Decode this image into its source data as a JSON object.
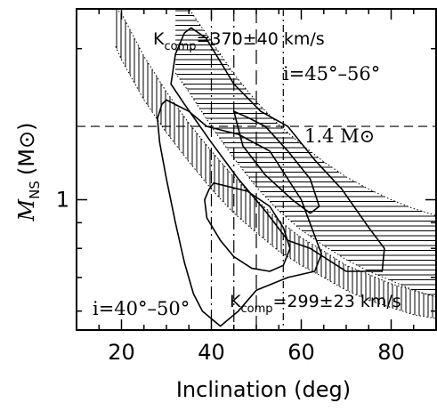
{
  "chart_data": {
    "type": "line",
    "title": "",
    "xlabel": "Inclination (deg)",
    "ylabel_main": "M",
    "ylabel_sub": "NS",
    "ylabel_unit": "(M⊙)",
    "xlim": [
      10,
      90
    ],
    "ylim": [
      0.55,
      2.4
    ],
    "y_scale": "log",
    "xticks": [
      20,
      40,
      60,
      80
    ],
    "xtick_labels": [
      "20",
      "40",
      "60",
      "80"
    ],
    "yticks": [
      1
    ],
    "ytick_labels": [
      "1"
    ],
    "grid": false,
    "reference_lines": [
      {
        "orientation": "horizontal",
        "value": 1.4,
        "style": "dashed",
        "label": "1.4 M⊙"
      },
      {
        "orientation": "vertical",
        "value": 40,
        "style": "long-dash-dot"
      },
      {
        "orientation": "vertical",
        "value": 45,
        "style": "long-dash-dot"
      },
      {
        "orientation": "vertical",
        "value": 50,
        "style": "long-dash"
      },
      {
        "orientation": "vertical",
        "value": 56,
        "style": "dash-dot"
      }
    ],
    "bands": [
      {
        "label": "K_comp=370±40 km/s",
        "hatch": "horizontal",
        "x": [
          32,
          35,
          40,
          45,
          50,
          55,
          60,
          65,
          70,
          75,
          80,
          85,
          90
        ],
        "y_upper": [
          2.4,
          2.4,
          2.07,
          1.78,
          1.57,
          1.41,
          1.29,
          1.19,
          1.11,
          1.05,
          1.0,
          0.96,
          0.93
        ],
        "y_lower": [
          1.79,
          1.64,
          1.4,
          1.21,
          1.06,
          0.95,
          0.87,
          0.81,
          0.76,
          0.72,
          0.69,
          0.66,
          0.64
        ]
      },
      {
        "label": "K_comp=299±23 km/s",
        "hatch": "vertical",
        "x": [
          18.7,
          20,
          25,
          30,
          35,
          40,
          45,
          50,
          55,
          60,
          65,
          70,
          75,
          80,
          85,
          90
        ],
        "y_upper": [
          2.4,
          2.35,
          1.93,
          1.64,
          1.42,
          1.25,
          1.11,
          1.0,
          0.91,
          0.84,
          0.79,
          0.74,
          0.71,
          0.68,
          0.66,
          0.64
        ],
        "y_lower": [
          2.02,
          1.9,
          1.58,
          1.36,
          1.19,
          1.05,
          0.94,
          0.86,
          0.79,
          0.74,
          0.7,
          0.66,
          0.63,
          0.61,
          0.59,
          0.58
        ]
      }
    ],
    "contours": [
      {
        "name": "outer-upper",
        "x": [
          35.5,
          38.8,
          45,
          51,
          57,
          63,
          69,
          75,
          78.5,
          78,
          70,
          62,
          57,
          52,
          46,
          40,
          34,
          31,
          32,
          34,
          35.5
        ],
        "y": [
          2.2,
          2.1,
          1.7,
          1.5,
          1.4,
          1.2,
          1.05,
          0.88,
          0.8,
          0.72,
          0.72,
          0.8,
          0.83,
          0.95,
          1.1,
          1.3,
          1.55,
          1.7,
          1.95,
          2.15,
          2.2
        ]
      },
      {
        "name": "inner-upper",
        "x": [
          45,
          48,
          52,
          57,
          62,
          64,
          62,
          58,
          52,
          47,
          45
        ],
        "y": [
          1.5,
          1.46,
          1.4,
          1.25,
          1.1,
          0.97,
          0.94,
          1.0,
          1.12,
          1.28,
          1.5
        ]
      },
      {
        "name": "outer-lower",
        "x": [
          30,
          35,
          39,
          46,
          53,
          60,
          64.5,
          63,
          57,
          50,
          46,
          42,
          38,
          36,
          34,
          32,
          30,
          28.5,
          28,
          29,
          30
        ],
        "y": [
          1.58,
          1.5,
          1.4,
          1.35,
          1.25,
          1.0,
          0.78,
          0.72,
          0.7,
          0.66,
          0.6,
          0.56,
          0.6,
          0.65,
          0.75,
          0.9,
          1.1,
          1.3,
          1.45,
          1.55,
          1.58
        ]
      },
      {
        "name": "inner-lower",
        "x": [
          40.5,
          48,
          53,
          56,
          57.5,
          56,
          53,
          49,
          45,
          42,
          39,
          38.5,
          39.5,
          40.5
        ],
        "y": [
          1.08,
          1.04,
          0.97,
          0.88,
          0.8,
          0.74,
          0.72,
          0.73,
          0.77,
          0.83,
          0.92,
          1.0,
          1.05,
          1.08
        ]
      }
    ],
    "annotations": [
      {
        "text": "K",
        "sub": "comp",
        "rest": "=370±40 km/s"
      },
      {
        "text": "K",
        "sub": "comp",
        "rest": "=299±23 km/s"
      },
      {
        "text": "i=45°–56°"
      },
      {
        "text": "i=40°–50°"
      },
      {
        "text": "1.4 M⊙"
      }
    ]
  }
}
